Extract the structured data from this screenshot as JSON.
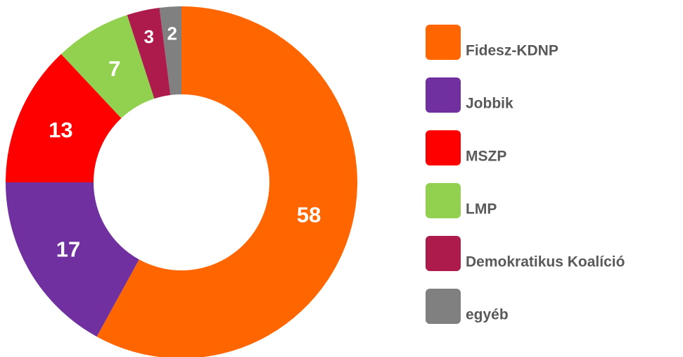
{
  "chart_data": {
    "type": "donut",
    "categories": [
      "Fidesz-KDNP",
      "Jobbik",
      "MSZP",
      "LMP",
      "Demokratikus Koalíció",
      "egyéb"
    ],
    "values": [
      58,
      17,
      13,
      7,
      3,
      2
    ],
    "colors": [
      "#ff6600",
      "#7030a0",
      "#ff0000",
      "#92d050",
      "#ad1a4c",
      "#808080"
    ],
    "legend": "right"
  }
}
